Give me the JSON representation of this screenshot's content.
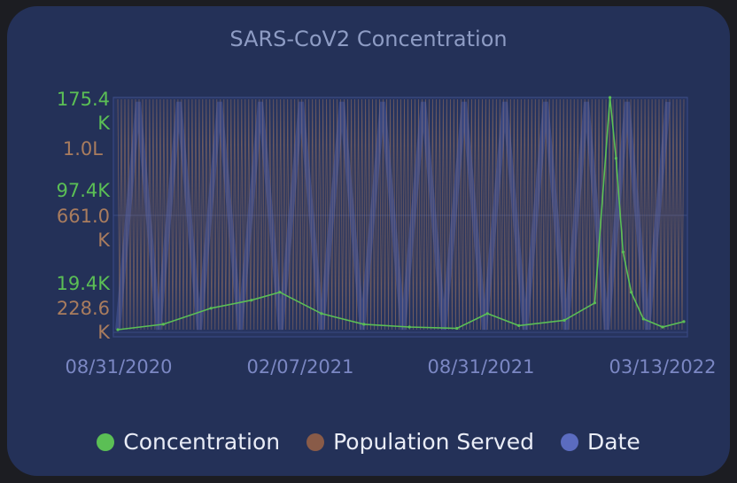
{
  "chart_data": {
    "type": "line",
    "title": "SARS-CoV2 Concentration",
    "x_tick_labels": [
      "08/31/2020",
      "02/07/2021",
      "08/31/2021",
      "03/13/2022"
    ],
    "x_range": [
      "08/31/2020",
      "03/13/2022"
    ],
    "y_left": {
      "color": "#5bbf55",
      "tick_labels": [
        "175.4 K",
        "97.4K",
        "19.4K"
      ],
      "ylim": [
        0,
        175400
      ]
    },
    "y_right_scale": {
      "color": "#a97c5e",
      "tick_labels": [
        "1.0L",
        "661.0 K",
        "228.6 K"
      ]
    },
    "series": [
      {
        "name": "Concentration",
        "color": "#5bbf55",
        "x": [
          "08/31/2020",
          "10/15/2020",
          "12/01/2020",
          "01/10/2021",
          "02/07/2021",
          "03/20/2021",
          "05/01/2021",
          "06/15/2021",
          "08/01/2021",
          "08/31/2021",
          "10/01/2021",
          "11/15/2021",
          "12/15/2021",
          "12/30/2021",
          "01/05/2022",
          "01/12/2022",
          "01/20/2022",
          "02/01/2022",
          "02/20/2022",
          "03/13/2022"
        ],
        "values": [
          2000,
          6000,
          18000,
          24000,
          30000,
          14000,
          6000,
          4000,
          3000,
          14000,
          5000,
          9000,
          22000,
          175400,
          130000,
          60000,
          30000,
          10000,
          4000,
          8000
        ]
      },
      {
        "name": "Population Served",
        "color": "#a97c5e"
      },
      {
        "name": "Date",
        "color": "#5b6cc0"
      }
    ],
    "grid": true,
    "legend": "bottom"
  },
  "legend": [
    {
      "label": "Concentration",
      "color": "#5bbf55"
    },
    {
      "label": "Population Served",
      "color": "#895b48"
    },
    {
      "label": "Date",
      "color": "#5b6cc0"
    }
  ]
}
